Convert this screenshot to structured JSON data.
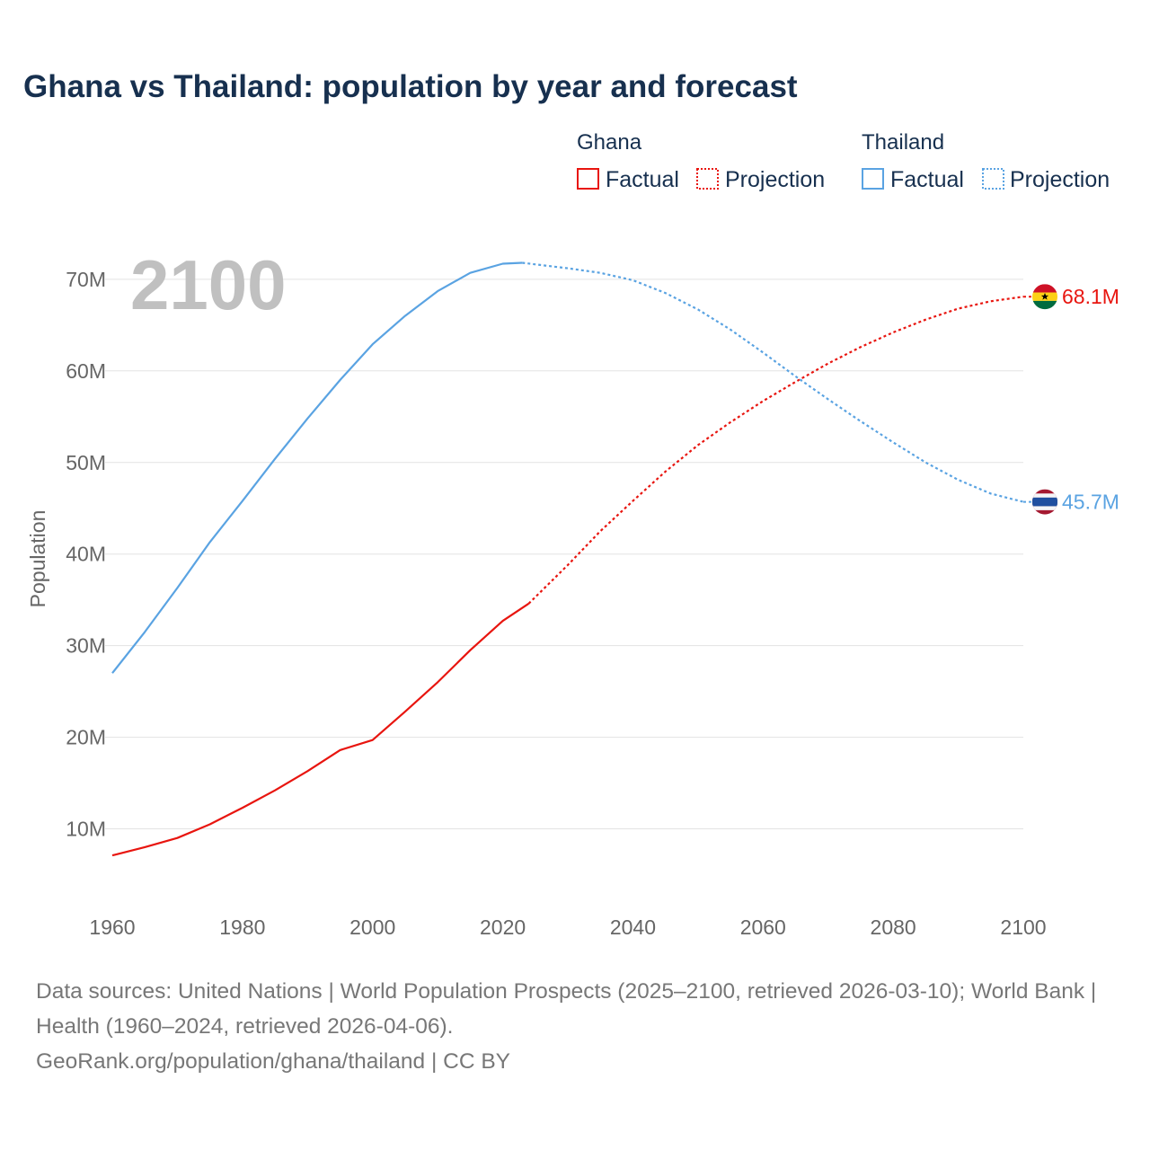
{
  "chart_data": {
    "type": "line",
    "title": "Ghana vs Thailand: population by year and forecast",
    "ylabel": "Population",
    "xlabel": "",
    "xlim": [
      1960,
      2100
    ],
    "ylim": [
      0,
      75000000
    ],
    "x_ticks": [
      1960,
      1980,
      2000,
      2020,
      2040,
      2060,
      2080,
      2100
    ],
    "x_tick_labels": [
      "1960",
      "1980",
      "2000",
      "2020",
      "2040",
      "2060",
      "2080",
      "2100"
    ],
    "y_ticks": [
      10000000,
      20000000,
      30000000,
      40000000,
      50000000,
      60000000,
      70000000
    ],
    "y_tick_labels": [
      "10M",
      "20M",
      "30M",
      "40M",
      "50M",
      "60M",
      "70M"
    ],
    "current_year_label": "2100",
    "legend": {
      "factual_label": "Factual",
      "projection_label": "Projection"
    },
    "series": [
      {
        "name": "Ghana",
        "color": "#e8150f",
        "end_label": "68.1M",
        "flag": "ghana-flag",
        "factual": {
          "x": [
            1960,
            1965,
            1970,
            1975,
            1980,
            1985,
            1990,
            1995,
            2000,
            2005,
            2010,
            2015,
            2020,
            2024
          ],
          "y": [
            7100000,
            8000000,
            9000000,
            10500000,
            12300000,
            14200000,
            16300000,
            18600000,
            19700000,
            22800000,
            26000000,
            29500000,
            32700000,
            34600000
          ]
        },
        "projection": {
          "x": [
            2024,
            2030,
            2035,
            2040,
            2045,
            2050,
            2055,
            2060,
            2065,
            2070,
            2075,
            2080,
            2085,
            2090,
            2095,
            2100
          ],
          "y": [
            34600000,
            38800000,
            42500000,
            45800000,
            49000000,
            51900000,
            54400000,
            56700000,
            58800000,
            60800000,
            62600000,
            64200000,
            65600000,
            66800000,
            67600000,
            68100000
          ]
        }
      },
      {
        "name": "Thailand",
        "color": "#5aa3e2",
        "end_label": "45.7M",
        "flag": "thailand-flag",
        "factual": {
          "x": [
            1960,
            1965,
            1970,
            1975,
            1980,
            1985,
            1990,
            1995,
            2000,
            2005,
            2010,
            2015,
            2020,
            2023
          ],
          "y": [
            27000000,
            31500000,
            36300000,
            41300000,
            45800000,
            50400000,
            54800000,
            59000000,
            62900000,
            66000000,
            68700000,
            70700000,
            71700000,
            71800000
          ]
        },
        "projection": {
          "x": [
            2023,
            2030,
            2035,
            2040,
            2045,
            2050,
            2055,
            2060,
            2065,
            2070,
            2075,
            2080,
            2085,
            2090,
            2095,
            2100
          ],
          "y": [
            71800000,
            71200000,
            70700000,
            69900000,
            68500000,
            66700000,
            64500000,
            62000000,
            59400000,
            56900000,
            54500000,
            52200000,
            50000000,
            48100000,
            46600000,
            45700000
          ]
        }
      }
    ]
  },
  "footer": {
    "line1": "Data sources: United Nations | World Population Prospects (2025–2100, retrieved 2026-03-10); World Bank | Health (1960–2024, retrieved 2026-04-06).",
    "line2": "GeoRank.org/population/ghana/thailand | CC BY"
  }
}
